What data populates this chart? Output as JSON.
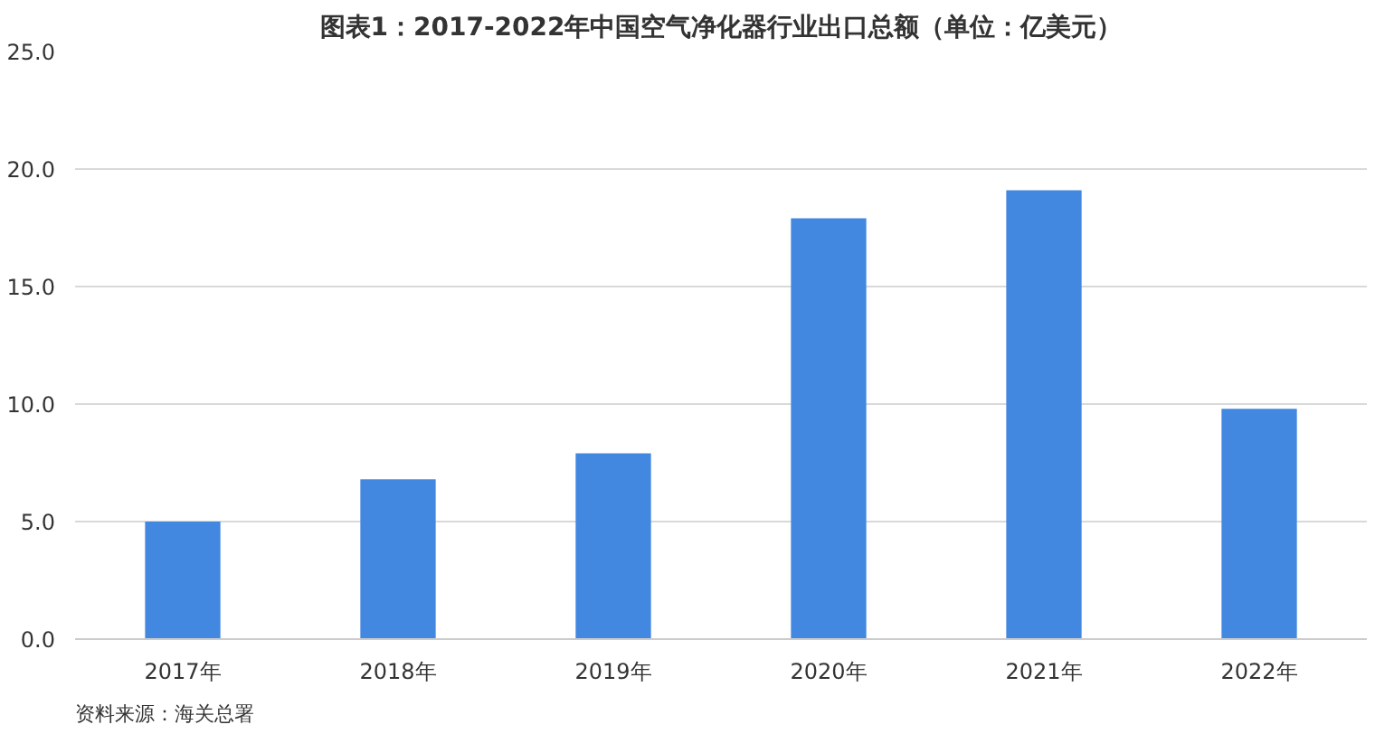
{
  "chart_data": {
    "type": "bar",
    "title": "图表1：2017-2022年中国空气净化器行业出口总额（单位：亿美元）",
    "categories": [
      "2017年",
      "2018年",
      "2019年",
      "2020年",
      "2021年",
      "2022年"
    ],
    "values": [
      5.0,
      6.8,
      7.9,
      17.9,
      19.1,
      9.8
    ],
    "color": "#4287e0",
    "ylim": [
      0,
      25
    ],
    "yticks": [
      {
        "value": 0,
        "label": "0.0"
      },
      {
        "value": 5,
        "label": "5.0"
      },
      {
        "value": 10,
        "label": "10.0"
      },
      {
        "value": 15,
        "label": "15.0"
      },
      {
        "value": 20,
        "label": "20.0"
      },
      {
        "value": 25,
        "label": "25.0"
      }
    ],
    "grid": "y",
    "annotations": [
      "资料来源：海关总署"
    ]
  }
}
